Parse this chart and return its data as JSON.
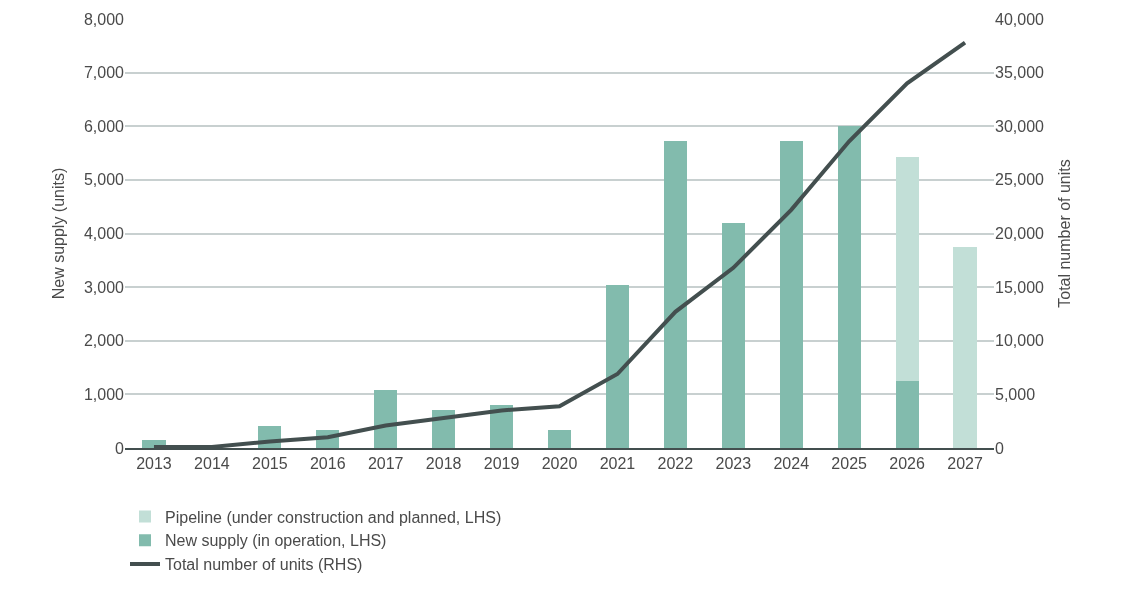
{
  "chart_data": {
    "type": "bar",
    "stacked": true,
    "ylabel": "New supply (units)",
    "y2label": "Total number of units",
    "categories": [
      "2013",
      "2014",
      "2015",
      "2016",
      "2017",
      "2018",
      "2019",
      "2020",
      "2021",
      "2022",
      "2023",
      "2024",
      "2025",
      "2026",
      "2027"
    ],
    "series": [
      {
        "name": "New supply (in operation, LHS)",
        "color": "#82bbad",
        "values": [
          140,
          0,
          410,
          340,
          1080,
          700,
          800,
          340,
          3040,
          5720,
          4200,
          5720,
          6000,
          1250,
          0
        ]
      },
      {
        "name": "Pipeline (under construction and planned, LHS)",
        "color": "#c2dfd7",
        "values": [
          0,
          0,
          0,
          0,
          0,
          0,
          0,
          0,
          0,
          0,
          0,
          0,
          0,
          4180,
          3750
        ]
      },
      {
        "name": "Total number of units (RHS)",
        "type": "line",
        "axis": "y2",
        "color": "#434f4f",
        "values": [
          100,
          100,
          600,
          1000,
          2100,
          2800,
          3500,
          3900,
          6900,
          12700,
          16800,
          22200,
          28600,
          34000,
          37800
        ]
      }
    ],
    "ylim": [
      0,
      8000
    ],
    "yticks": [
      {
        "value": 0,
        "label": "0"
      },
      {
        "value": 1000,
        "label": "1,000"
      },
      {
        "value": 2000,
        "label": "2,000"
      },
      {
        "value": 3000,
        "label": "3,000"
      },
      {
        "value": 4000,
        "label": "4,000"
      },
      {
        "value": 5000,
        "label": "5,000"
      },
      {
        "value": 6000,
        "label": "6,000"
      },
      {
        "value": 7000,
        "label": "7,000"
      },
      {
        "value": 8000,
        "label": "8,000"
      }
    ],
    "y2lim": [
      0,
      40000
    ],
    "y2ticks": [
      {
        "value": 0,
        "label": "0"
      },
      {
        "value": 5000,
        "label": "5,000"
      },
      {
        "value": 10000,
        "label": "10,000"
      },
      {
        "value": 15000,
        "label": "15,000"
      },
      {
        "value": 20000,
        "label": "20,000"
      },
      {
        "value": 25000,
        "label": "25,000"
      },
      {
        "value": 30000,
        "label": "30,000"
      },
      {
        "value": 35000,
        "label": "35,000"
      },
      {
        "value": 40000,
        "label": "40,000"
      }
    ],
    "grid": "y",
    "legend": "bottom",
    "marker": "none",
    "line_style": "solid"
  }
}
